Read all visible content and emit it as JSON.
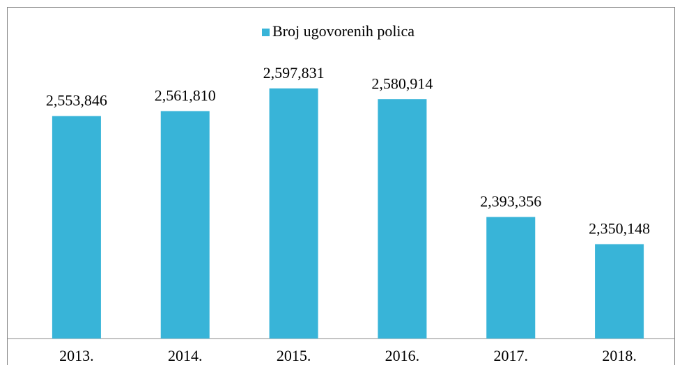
{
  "chart_data": {
    "type": "bar",
    "categories": [
      "2013.",
      "2014.",
      "2015.",
      "2016.",
      "2017.",
      "2018."
    ],
    "series": [
      {
        "name": "Broj ugovorenih polica",
        "color": "#38b4d8",
        "values": [
          2553846,
          2561810,
          2597831,
          2580914,
          2393356,
          2350148
        ],
        "value_labels": [
          "2,553,846",
          "2,561,810",
          "2,597,831",
          "2,580,914",
          "2,393,356",
          "2,350,148"
        ]
      }
    ],
    "ylim": [
      2200000,
      2600000
    ],
    "legend": "top"
  }
}
